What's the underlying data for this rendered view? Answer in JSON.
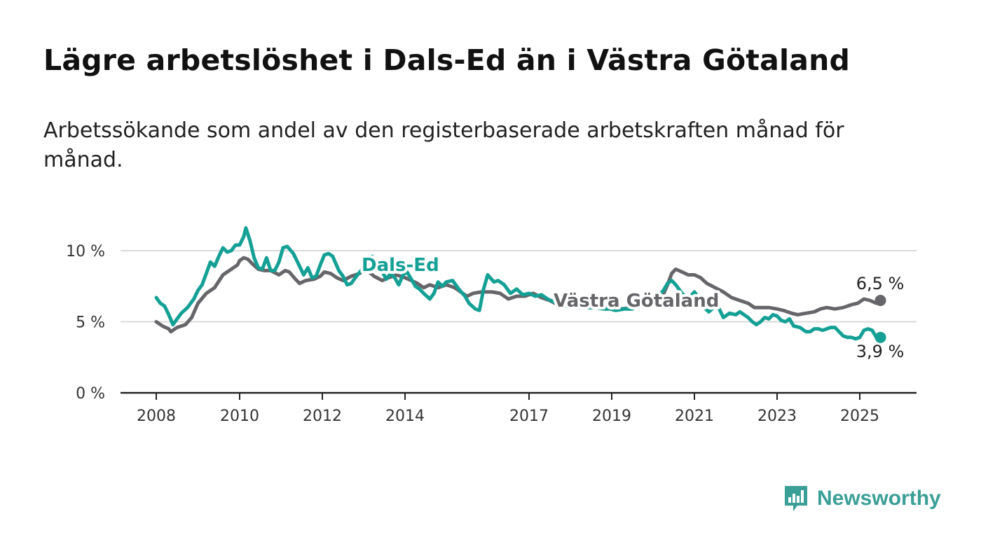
{
  "title": "Lägre arbetslöshet i Dals-Ed än i Västra Götaland",
  "subtitle": "Arbetssökande som andel av den registerbaserade arbetskraften månad för månad.",
  "brand": {
    "name": "Newsworthy",
    "icon": "bar-chart-speech-bubble-icon",
    "color": "#3a9f97"
  },
  "chart_data": {
    "type": "line",
    "x_range": [
      2007.2,
      2026.4
    ],
    "ylim": [
      0,
      12
    ],
    "y_ticks": [
      {
        "value": 0,
        "label": "0 %"
      },
      {
        "value": 5,
        "label": "5 %"
      },
      {
        "value": 10,
        "label": "10 %"
      }
    ],
    "x_ticks": [
      {
        "value": 2008,
        "label": "2008"
      },
      {
        "value": 2010,
        "label": "2010"
      },
      {
        "value": 2012,
        "label": "2012"
      },
      {
        "value": 2014,
        "label": "2014"
      },
      {
        "value": 2017,
        "label": "2017"
      },
      {
        "value": 2019,
        "label": "2019"
      },
      {
        "value": 2021,
        "label": "2021"
      },
      {
        "value": 2023,
        "label": "2023"
      },
      {
        "value": 2025,
        "label": "2025"
      }
    ],
    "grid": true,
    "series": [
      {
        "name": "Västra Götaland",
        "color": "#666569",
        "end_label": "6,5 %",
        "points": [
          [
            2008.0,
            5.0
          ],
          [
            2008.15,
            4.7
          ],
          [
            2008.3,
            4.5
          ],
          [
            2008.35,
            4.3
          ],
          [
            2008.5,
            4.6
          ],
          [
            2008.7,
            4.8
          ],
          [
            2008.85,
            5.3
          ],
          [
            2009.0,
            6.3
          ],
          [
            2009.2,
            7.0
          ],
          [
            2009.4,
            7.4
          ],
          [
            2009.6,
            8.3
          ],
          [
            2009.8,
            8.7
          ],
          [
            2009.95,
            9.0
          ],
          [
            2010.0,
            9.3
          ],
          [
            2010.1,
            9.5
          ],
          [
            2010.2,
            9.4
          ],
          [
            2010.3,
            9.1
          ],
          [
            2010.45,
            8.7
          ],
          [
            2010.6,
            8.6
          ],
          [
            2010.75,
            8.6
          ],
          [
            2010.95,
            8.3
          ],
          [
            2011.1,
            8.6
          ],
          [
            2011.2,
            8.5
          ],
          [
            2011.35,
            8.0
          ],
          [
            2011.45,
            7.7
          ],
          [
            2011.6,
            7.9
          ],
          [
            2011.8,
            8.0
          ],
          [
            2011.95,
            8.2
          ],
          [
            2012.05,
            8.5
          ],
          [
            2012.2,
            8.4
          ],
          [
            2012.35,
            8.1
          ],
          [
            2012.5,
            7.9
          ],
          [
            2012.7,
            8.2
          ],
          [
            2012.9,
            8.4
          ],
          [
            2013.05,
            8.7
          ],
          [
            2013.25,
            8.2
          ],
          [
            2013.45,
            7.9
          ],
          [
            2013.6,
            8.1
          ],
          [
            2013.8,
            8.3
          ],
          [
            2014.0,
            8.1
          ],
          [
            2014.15,
            7.9
          ],
          [
            2014.3,
            7.7
          ],
          [
            2014.45,
            7.4
          ],
          [
            2014.6,
            7.6
          ],
          [
            2014.8,
            7.4
          ],
          [
            2015.0,
            7.6
          ],
          [
            2015.2,
            7.4
          ],
          [
            2015.35,
            7.1
          ],
          [
            2015.5,
            6.8
          ],
          [
            2015.65,
            7.0
          ],
          [
            2015.85,
            7.1
          ],
          [
            2016.1,
            7.1
          ],
          [
            2016.3,
            7.0
          ],
          [
            2016.5,
            6.6
          ],
          [
            2016.7,
            6.8
          ],
          [
            2016.9,
            6.8
          ],
          [
            2017.1,
            7.0
          ],
          [
            2017.3,
            6.7
          ],
          [
            2017.5,
            6.5
          ],
          [
            2017.7,
            6.2
          ],
          [
            2018.0,
            6.2
          ],
          [
            2018.4,
            6.0
          ],
          [
            2018.8,
            6.0
          ],
          [
            2019.2,
            5.9
          ],
          [
            2019.6,
            6.0
          ],
          [
            2020.0,
            6.3
          ],
          [
            2020.2,
            6.6
          ],
          [
            2020.35,
            7.6
          ],
          [
            2020.45,
            8.4
          ],
          [
            2020.55,
            8.7
          ],
          [
            2020.7,
            8.5
          ],
          [
            2020.85,
            8.3
          ],
          [
            2021.0,
            8.3
          ],
          [
            2021.15,
            8.1
          ],
          [
            2021.3,
            7.7
          ],
          [
            2021.5,
            7.4
          ],
          [
            2021.7,
            7.1
          ],
          [
            2021.9,
            6.7
          ],
          [
            2022.1,
            6.5
          ],
          [
            2022.3,
            6.3
          ],
          [
            2022.45,
            6.0
          ],
          [
            2022.6,
            6.0
          ],
          [
            2022.8,
            6.0
          ],
          [
            2023.0,
            5.9
          ],
          [
            2023.15,
            5.8
          ],
          [
            2023.35,
            5.6
          ],
          [
            2023.5,
            5.5
          ],
          [
            2023.7,
            5.6
          ],
          [
            2023.9,
            5.7
          ],
          [
            2024.05,
            5.9
          ],
          [
            2024.2,
            6.0
          ],
          [
            2024.4,
            5.9
          ],
          [
            2024.6,
            6.0
          ],
          [
            2024.8,
            6.2
          ],
          [
            2024.95,
            6.3
          ],
          [
            2025.1,
            6.6
          ],
          [
            2025.25,
            6.5
          ],
          [
            2025.4,
            6.3
          ],
          [
            2025.5,
            6.5
          ]
        ]
      },
      {
        "name": "Dals-Ed",
        "color": "#14a095",
        "end_label": "3,9 %",
        "points": [
          [
            2008.0,
            6.7
          ],
          [
            2008.1,
            6.3
          ],
          [
            2008.2,
            6.1
          ],
          [
            2008.3,
            5.5
          ],
          [
            2008.4,
            4.8
          ],
          [
            2008.5,
            5.2
          ],
          [
            2008.6,
            5.6
          ],
          [
            2008.75,
            6.0
          ],
          [
            2008.9,
            6.6
          ],
          [
            2009.0,
            7.2
          ],
          [
            2009.1,
            7.6
          ],
          [
            2009.2,
            8.4
          ],
          [
            2009.3,
            9.2
          ],
          [
            2009.4,
            8.9
          ],
          [
            2009.5,
            9.6
          ],
          [
            2009.6,
            10.2
          ],
          [
            2009.7,
            9.9
          ],
          [
            2009.8,
            10.0
          ],
          [
            2009.9,
            10.4
          ],
          [
            2010.0,
            10.4
          ],
          [
            2010.1,
            11.0
          ],
          [
            2010.15,
            11.6
          ],
          [
            2010.25,
            10.7
          ],
          [
            2010.35,
            9.5
          ],
          [
            2010.45,
            8.8
          ],
          [
            2010.55,
            8.7
          ],
          [
            2010.65,
            9.5
          ],
          [
            2010.75,
            8.6
          ],
          [
            2010.85,
            8.6
          ],
          [
            2010.95,
            9.2
          ],
          [
            2011.05,
            10.2
          ],
          [
            2011.15,
            10.3
          ],
          [
            2011.3,
            9.8
          ],
          [
            2011.45,
            8.9
          ],
          [
            2011.55,
            8.3
          ],
          [
            2011.65,
            8.8
          ],
          [
            2011.75,
            8.1
          ],
          [
            2011.85,
            8.2
          ],
          [
            2011.95,
            9.0
          ],
          [
            2012.05,
            9.7
          ],
          [
            2012.15,
            9.8
          ],
          [
            2012.25,
            9.6
          ],
          [
            2012.4,
            8.6
          ],
          [
            2012.5,
            8.2
          ],
          [
            2012.6,
            7.6
          ],
          [
            2012.7,
            7.7
          ],
          [
            2012.85,
            8.3
          ],
          [
            2013.0,
            8.8
          ],
          [
            2013.1,
            9.4
          ],
          [
            2013.2,
            9.6
          ],
          [
            2013.3,
            9.1
          ],
          [
            2013.45,
            8.5
          ],
          [
            2013.55,
            8.0
          ],
          [
            2013.65,
            8.4
          ],
          [
            2013.75,
            8.1
          ],
          [
            2013.85,
            7.6
          ],
          [
            2013.95,
            8.3
          ],
          [
            2014.05,
            8.5
          ],
          [
            2014.15,
            8.0
          ],
          [
            2014.25,
            7.5
          ],
          [
            2014.35,
            7.3
          ],
          [
            2014.45,
            7.0
          ],
          [
            2014.6,
            6.6
          ],
          [
            2014.7,
            7.0
          ],
          [
            2014.8,
            7.8
          ],
          [
            2014.9,
            7.5
          ],
          [
            2015.0,
            7.8
          ],
          [
            2015.15,
            7.9
          ],
          [
            2015.3,
            7.3
          ],
          [
            2015.45,
            6.8
          ],
          [
            2015.55,
            6.3
          ],
          [
            2015.7,
            5.9
          ],
          [
            2015.8,
            5.8
          ],
          [
            2015.9,
            7.3
          ],
          [
            2016.0,
            8.3
          ],
          [
            2016.15,
            7.8
          ],
          [
            2016.25,
            7.9
          ],
          [
            2016.4,
            7.6
          ],
          [
            2016.55,
            7.0
          ],
          [
            2016.7,
            7.3
          ],
          [
            2016.85,
            6.9
          ],
          [
            2017.0,
            7.0
          ],
          [
            2017.15,
            6.8
          ],
          [
            2017.3,
            6.9
          ],
          [
            2017.45,
            6.6
          ],
          [
            2017.6,
            6.4
          ],
          [
            2017.8,
            6.2
          ],
          [
            2018.0,
            6.0
          ],
          [
            2018.3,
            6.0
          ],
          [
            2018.6,
            6.0
          ],
          [
            2018.8,
            5.9
          ],
          [
            2018.95,
            5.9
          ],
          [
            2019.1,
            5.8
          ],
          [
            2019.3,
            5.9
          ],
          [
            2019.5,
            5.9
          ],
          [
            2019.7,
            6.2
          ],
          [
            2019.9,
            6.5
          ],
          [
            2020.1,
            6.8
          ],
          [
            2020.25,
            7.2
          ],
          [
            2020.35,
            7.7
          ],
          [
            2020.45,
            7.9
          ],
          [
            2020.55,
            7.6
          ],
          [
            2020.7,
            7.0
          ],
          [
            2020.85,
            6.6
          ],
          [
            2021.0,
            7.1
          ],
          [
            2021.1,
            6.7
          ],
          [
            2021.2,
            6.1
          ],
          [
            2021.35,
            5.7
          ],
          [
            2021.5,
            6.1
          ],
          [
            2021.6,
            5.9
          ],
          [
            2021.7,
            5.3
          ],
          [
            2021.85,
            5.6
          ],
          [
            2022.0,
            5.5
          ],
          [
            2022.1,
            5.7
          ],
          [
            2022.2,
            5.5
          ],
          [
            2022.3,
            5.3
          ],
          [
            2022.4,
            5.0
          ],
          [
            2022.5,
            4.8
          ],
          [
            2022.6,
            5.0
          ],
          [
            2022.7,
            5.3
          ],
          [
            2022.8,
            5.2
          ],
          [
            2022.9,
            5.5
          ],
          [
            2023.0,
            5.4
          ],
          [
            2023.1,
            5.1
          ],
          [
            2023.2,
            5.0
          ],
          [
            2023.3,
            5.2
          ],
          [
            2023.4,
            4.7
          ],
          [
            2023.55,
            4.6
          ],
          [
            2023.7,
            4.3
          ],
          [
            2023.8,
            4.3
          ],
          [
            2023.9,
            4.5
          ],
          [
            2024.0,
            4.5
          ],
          [
            2024.1,
            4.4
          ],
          [
            2024.2,
            4.5
          ],
          [
            2024.3,
            4.6
          ],
          [
            2024.4,
            4.6
          ],
          [
            2024.5,
            4.3
          ],
          [
            2024.6,
            4.0
          ],
          [
            2024.7,
            3.9
          ],
          [
            2024.8,
            3.9
          ],
          [
            2024.9,
            3.8
          ],
          [
            2025.0,
            3.9
          ],
          [
            2025.1,
            4.4
          ],
          [
            2025.2,
            4.5
          ],
          [
            2025.3,
            4.4
          ],
          [
            2025.4,
            3.9
          ],
          [
            2025.5,
            3.9
          ]
        ]
      }
    ]
  }
}
